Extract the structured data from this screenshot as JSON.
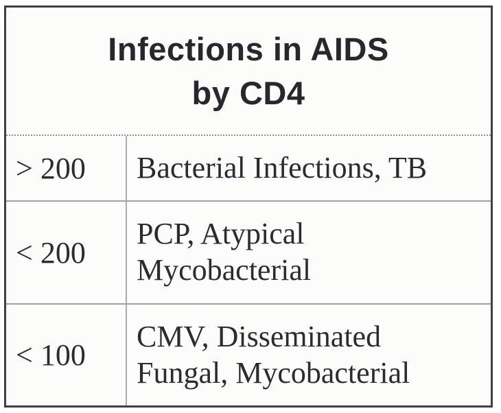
{
  "table": {
    "title_line1": "Infections in AIDS",
    "title_line2": "by CD4",
    "rows": [
      {
        "cd4": "> 200",
        "infections_line1": "Bacterial Infections, TB",
        "infections_line2": ""
      },
      {
        "cd4": "< 200",
        "infections_line1": "PCP, Atypical",
        "infections_line2": "Mycobacterial"
      },
      {
        "cd4": "< 100",
        "infections_line1": "CMV, Disseminated",
        "infections_line2": "Fungal, Mycobacterial"
      }
    ]
  }
}
